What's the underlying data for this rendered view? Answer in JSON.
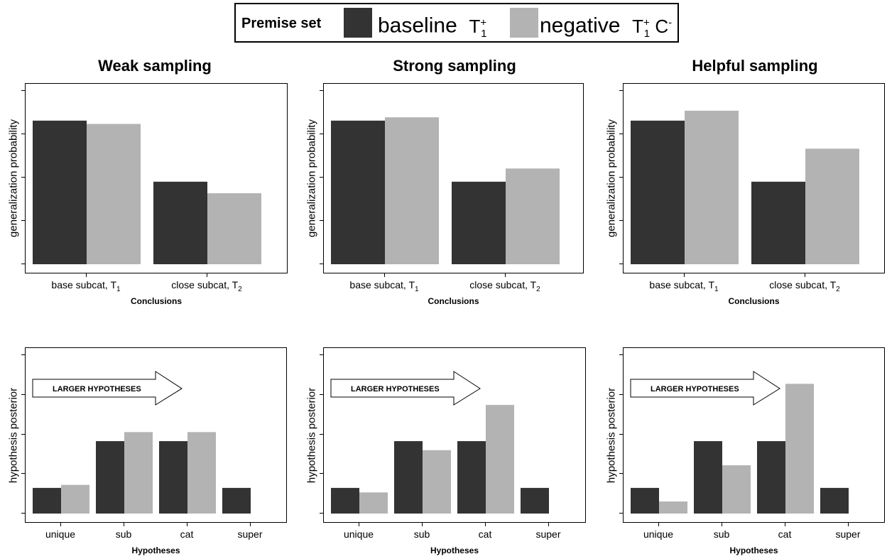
{
  "legend": {
    "title": "Premise set",
    "items": [
      {
        "label": "baseline",
        "symbol": "T",
        "sub": "1",
        "sup": "+",
        "extra": "",
        "extra_sup": "",
        "color": "#333333"
      },
      {
        "label": "negative",
        "symbol": "T",
        "sub": "1",
        "sup": "+",
        "extra": "C",
        "extra_sup": "-",
        "color": "#b3b3b3"
      }
    ]
  },
  "colors": {
    "baseline": "#333333",
    "negative": "#b3b3b3"
  },
  "arrow_text": "LARGER HYPOTHESES",
  "chart_data": [
    {
      "type": "bar",
      "title": "Weak sampling",
      "xlabel": "Conclusions",
      "ylabel": "generalization probability",
      "categories": [
        "base subcat,  T",
        "close subcat,  T"
      ],
      "category_subs": [
        "1",
        "2"
      ],
      "ylim": [
        0,
        1.05
      ],
      "series": [
        {
          "name": "baseline",
          "values": [
            0.87,
            0.5
          ]
        },
        {
          "name": "negative",
          "values": [
            0.85,
            0.43
          ]
        }
      ]
    },
    {
      "type": "bar",
      "title": "Strong sampling",
      "xlabel": "Conclusions",
      "ylabel": "generalization probability",
      "categories": [
        "base subcat,  T",
        "close subcat,  T"
      ],
      "category_subs": [
        "1",
        "2"
      ],
      "ylim": [
        0,
        1.05
      ],
      "series": [
        {
          "name": "baseline",
          "values": [
            0.87,
            0.5
          ]
        },
        {
          "name": "negative",
          "values": [
            0.89,
            0.58
          ]
        }
      ]
    },
    {
      "type": "bar",
      "title": "Helpful sampling",
      "xlabel": "Conclusions",
      "ylabel": "generalization probability",
      "categories": [
        "base subcat,  T",
        "close subcat,  T"
      ],
      "category_subs": [
        "1",
        "2"
      ],
      "ylim": [
        0,
        1.05
      ],
      "series": [
        {
          "name": "baseline",
          "values": [
            0.87,
            0.5
          ]
        },
        {
          "name": "negative",
          "values": [
            0.93,
            0.7
          ]
        }
      ]
    },
    {
      "type": "bar",
      "title": "",
      "xlabel": "Hypotheses",
      "ylabel": "hypothesis posterior",
      "categories": [
        "unique",
        "sub",
        "cat",
        "super"
      ],
      "category_subs": [
        "",
        "",
        "",
        ""
      ],
      "ylim": [
        0,
        1.05
      ],
      "series": [
        {
          "name": "baseline",
          "values": [
            0.17,
            0.48,
            0.48,
            0.17
          ]
        },
        {
          "name": "negative",
          "values": [
            0.19,
            0.54,
            0.54,
            null
          ]
        }
      ]
    },
    {
      "type": "bar",
      "title": "",
      "xlabel": "Hypotheses",
      "ylabel": "hypothesis posterior",
      "categories": [
        "unique",
        "sub",
        "cat",
        "super"
      ],
      "category_subs": [
        "",
        "",
        "",
        ""
      ],
      "ylim": [
        0,
        1.05
      ],
      "series": [
        {
          "name": "baseline",
          "values": [
            0.17,
            0.48,
            0.48,
            0.17
          ]
        },
        {
          "name": "negative",
          "values": [
            0.14,
            0.42,
            0.72,
            null
          ]
        }
      ]
    },
    {
      "type": "bar",
      "title": "",
      "xlabel": "Hypotheses",
      "ylabel": "hypothesis posterior",
      "categories": [
        "unique",
        "sub",
        "cat",
        "super"
      ],
      "category_subs": [
        "",
        "",
        "",
        ""
      ],
      "ylim": [
        0,
        1.05
      ],
      "series": [
        {
          "name": "baseline",
          "values": [
            0.17,
            0.48,
            0.48,
            0.17
          ]
        },
        {
          "name": "negative",
          "values": [
            0.08,
            0.32,
            0.86,
            null
          ]
        }
      ]
    }
  ]
}
